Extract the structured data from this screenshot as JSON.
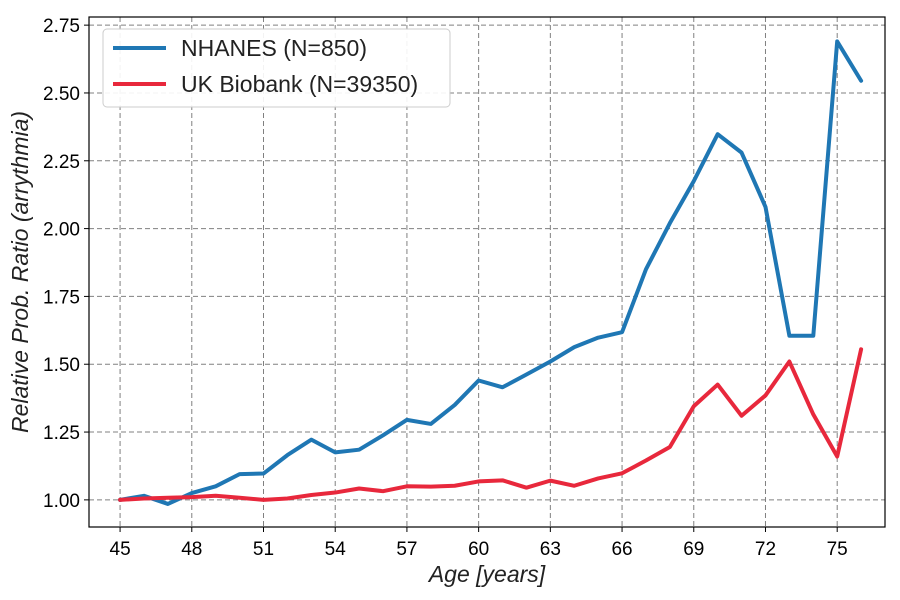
{
  "chart_data": {
    "type": "line",
    "title": "",
    "xlabel": "Age [years]",
    "ylabel": "Relative Prob. Ratio (arrythmia)",
    "xlim": [
      43.7,
      77.0
    ],
    "ylim": [
      0.9,
      2.78
    ],
    "xticks": [
      45,
      48,
      51,
      54,
      57,
      60,
      63,
      66,
      69,
      72,
      75
    ],
    "yticks": [
      1.0,
      1.25,
      1.5,
      1.75,
      2.0,
      2.25,
      2.5,
      2.75
    ],
    "ytick_labels": [
      "1.00",
      "1.25",
      "1.50",
      "1.75",
      "2.00",
      "2.25",
      "2.50",
      "2.75"
    ],
    "grid": true,
    "legend_position": "top-left",
    "x": [
      45,
      46,
      47,
      48,
      49,
      50,
      51,
      52,
      53,
      54,
      55,
      56,
      57,
      58,
      59,
      60,
      61,
      62,
      63,
      64,
      65,
      66,
      67,
      68,
      69,
      70,
      71,
      72,
      73,
      74,
      75,
      76
    ],
    "series": [
      {
        "name": "NHANES (N=850)",
        "color": "#1f77b4",
        "values": [
          1.0,
          1.015,
          0.985,
          1.025,
          1.05,
          1.095,
          1.097,
          1.165,
          1.222,
          1.175,
          1.185,
          1.238,
          1.295,
          1.28,
          1.35,
          1.44,
          1.415,
          1.462,
          1.51,
          1.563,
          1.598,
          1.618,
          1.85,
          2.02,
          2.175,
          2.348,
          2.28,
          2.08,
          1.605,
          1.605,
          2.69,
          2.545
        ]
      },
      {
        "name": "UK Biobank (N=39350)",
        "color": "#e8283c",
        "values": [
          1.0,
          1.005,
          1.008,
          1.01,
          1.015,
          1.008,
          1.0,
          1.005,
          1.018,
          1.027,
          1.042,
          1.032,
          1.05,
          1.049,
          1.052,
          1.068,
          1.072,
          1.045,
          1.071,
          1.052,
          1.079,
          1.098,
          1.145,
          1.195,
          1.345,
          1.425,
          1.31,
          1.385,
          1.51,
          1.315,
          1.16,
          1.555
        ]
      }
    ]
  }
}
